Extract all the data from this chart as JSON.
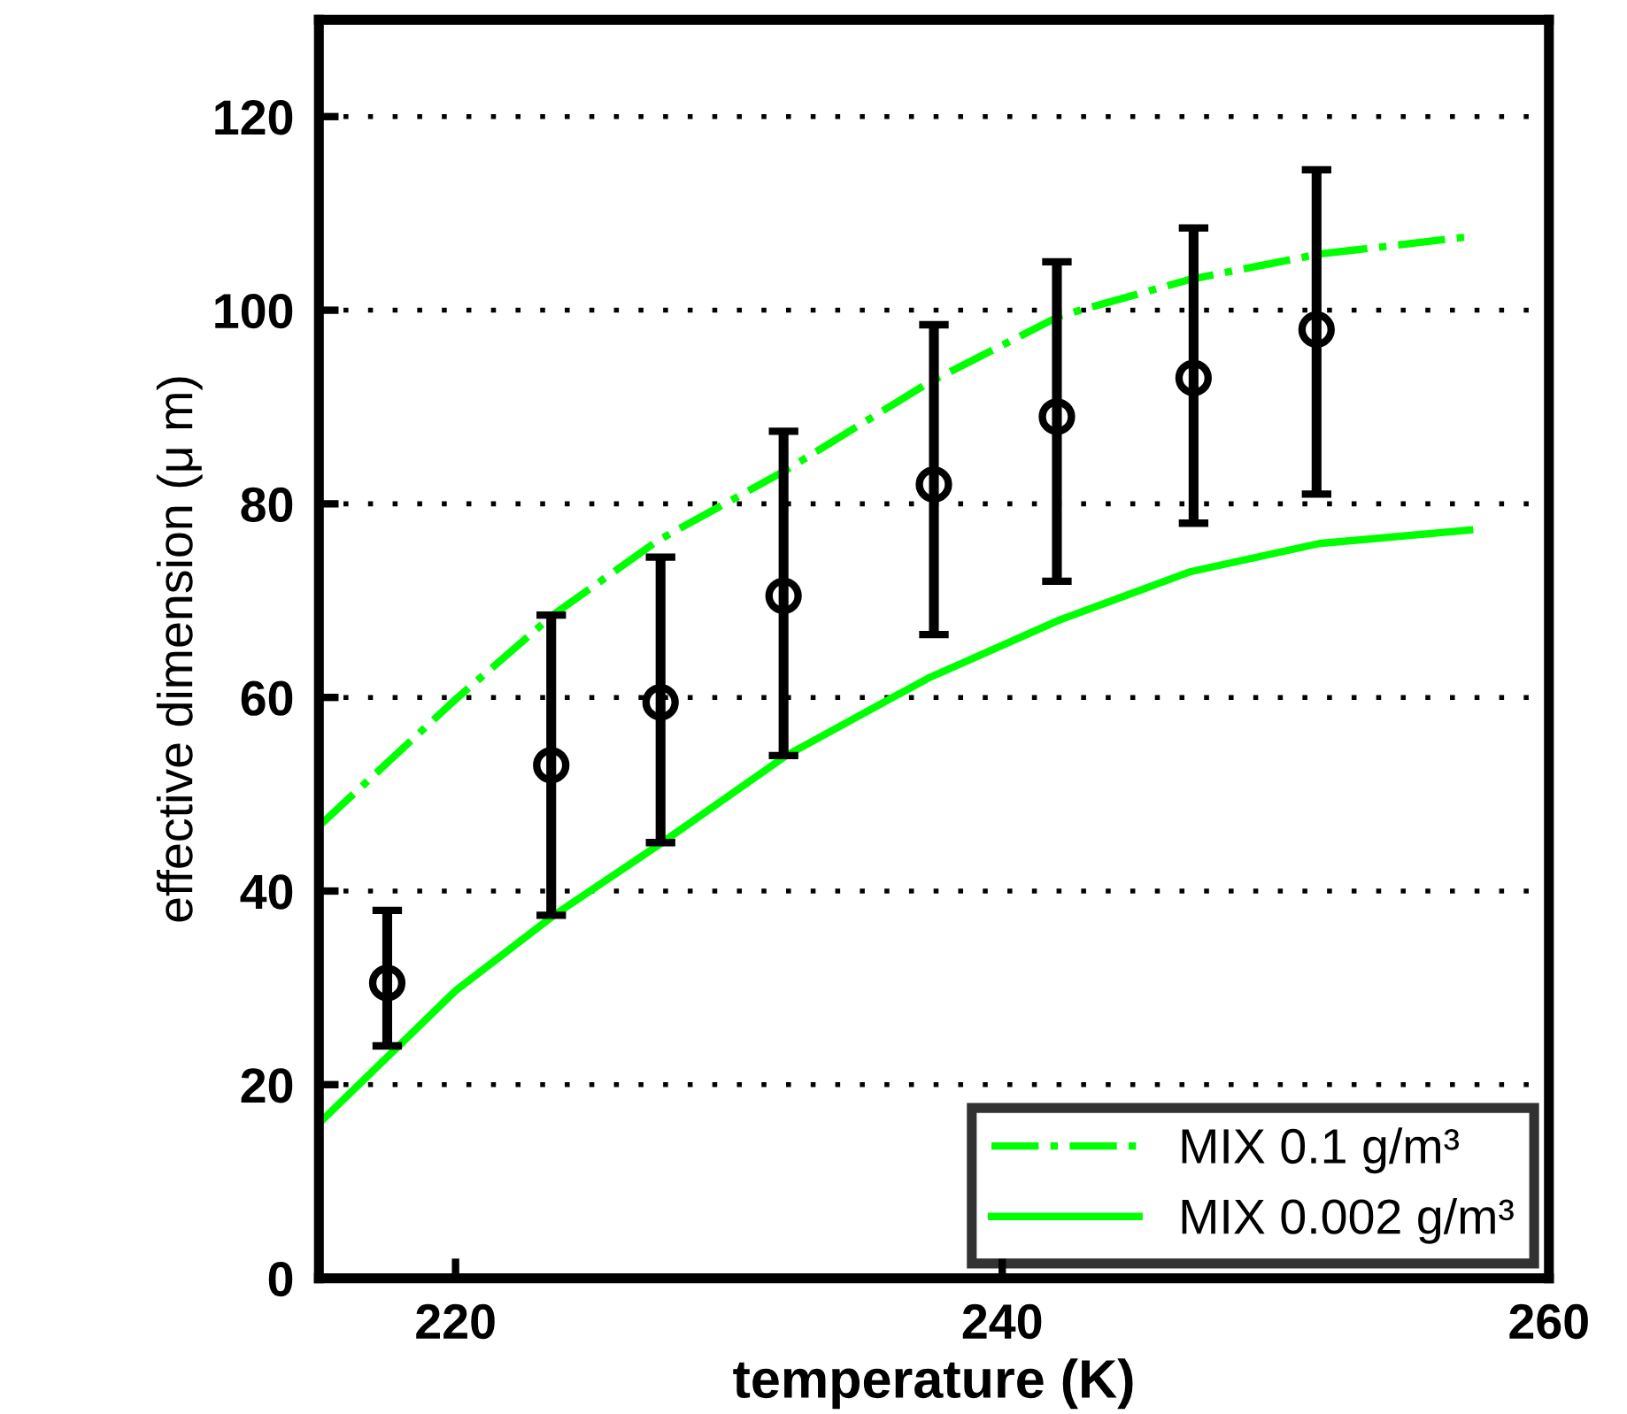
{
  "chart_data": {
    "type": "line",
    "xlabel": "temperature (K)",
    "ylabel": "effective dimension (μ m)",
    "xlim": [
      215,
      260
    ],
    "xticks": [
      220,
      240,
      260
    ],
    "ylim": [
      0,
      130
    ],
    "yticks": [
      0,
      20,
      40,
      60,
      80,
      100,
      120
    ],
    "grid": "y",
    "legend": "bottom right",
    "series": [
      {
        "name": "MIX 0.1 g/m³",
        "color": "#00ff00",
        "line_style": "dashdot",
        "x": [
          215,
          220,
          223.6,
          227.4,
          232.1,
          237.3,
          242.1,
          246.9,
          251.6,
          257.1
        ],
        "values": [
          46.7,
          59.8,
          68.6,
          76.2,
          83.5,
          92.5,
          99.4,
          103.2,
          105.8,
          107.6
        ]
      },
      {
        "name": "MIX 0.002 g/m³",
        "color": "#00ff00",
        "line_style": "solid",
        "x": [
          215,
          220,
          223.6,
          227.4,
          232.1,
          237.3,
          242.1,
          246.9,
          251.6,
          257.1
        ],
        "values": [
          16,
          29.7,
          37.5,
          44.7,
          54,
          62,
          68,
          73,
          75.9,
          77.3
        ]
      },
      {
        "type": "scatter",
        "color": "#000000",
        "marker": "circle",
        "x": [
          217.5,
          223.5,
          227.5,
          232,
          237.5,
          242,
          247,
          251.5
        ],
        "values": [
          30.5,
          53,
          59.5,
          70.5,
          82,
          89,
          93,
          98
        ],
        "errors": [
          [
            24,
            38
          ],
          [
            37.5,
            68.5
          ],
          [
            45,
            74.5
          ],
          [
            54,
            87.5
          ],
          [
            66.5,
            98.5
          ],
          [
            72,
            105
          ],
          [
            78,
            108.5
          ],
          [
            81,
            114.5
          ]
        ]
      }
    ]
  }
}
